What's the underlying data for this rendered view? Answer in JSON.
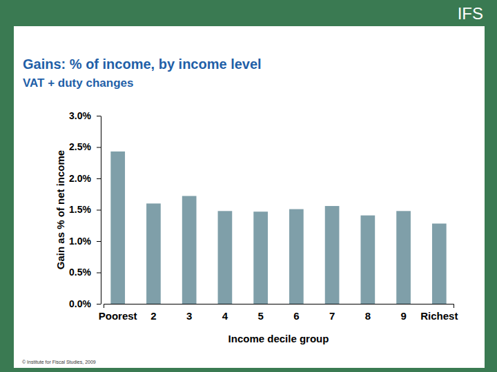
{
  "chart_data": {
    "type": "bar",
    "title": "Gains: % of income, by income level",
    "subtitle": "VAT + duty changes",
    "x_label": "Income decile group",
    "y_label": "Gain as % of net income",
    "categories": [
      "Poorest",
      "2",
      "3",
      "4",
      "5",
      "6",
      "7",
      "8",
      "9",
      "Richest"
    ],
    "values": [
      2.43,
      1.6,
      1.72,
      1.48,
      1.47,
      1.51,
      1.56,
      1.41,
      1.48,
      1.28
    ],
    "color": "#7f9fa9",
    "ylim": [
      0,
      3
    ],
    "yticks": [
      {
        "value": 0,
        "label": "0.0%"
      },
      {
        "value": 0.5,
        "label": "0.5%"
      },
      {
        "value": 1,
        "label": "1.0%"
      },
      {
        "value": 1.5,
        "label": "1.5%"
      },
      {
        "value": 2,
        "label": "2.0%"
      },
      {
        "value": 2.5,
        "label": "2.5%"
      },
      {
        "value": 3,
        "label": "3.0%"
      }
    ],
    "grid": false,
    "annotations": [
      "IFS",
      "© Institute for Fiscal Studies, 2009"
    ]
  }
}
